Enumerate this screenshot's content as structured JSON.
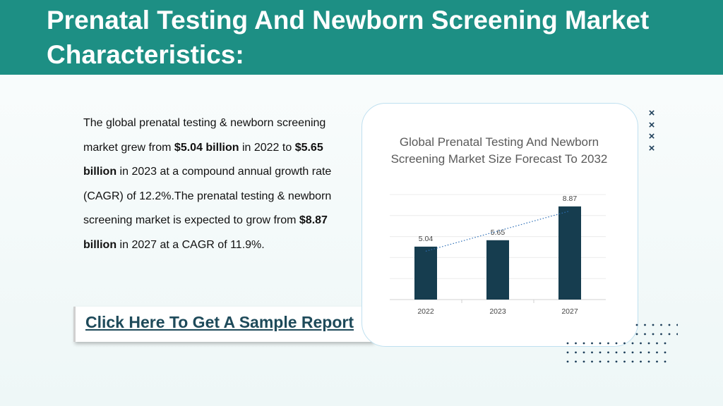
{
  "header": {
    "title": "Prenatal Testing And Newborn Screening Market Characteristics:"
  },
  "body": {
    "segments": [
      {
        "text": "The global prenatal testing & newborn screening market grew from ",
        "bold": false
      },
      {
        "text": "$5.04 billion",
        "bold": true
      },
      {
        "text": " in 2022 to ",
        "bold": false
      },
      {
        "text": "$5.65 billion",
        "bold": true
      },
      {
        "text": " in 2023 at a compound annual growth rate (CAGR) of 12.2%.The prenatal testing & newborn screening market is expected to grow from ",
        "bold": false
      },
      {
        "text": "$8.87 billion",
        "bold": true
      },
      {
        "text": " in 2027 at a CAGR of 11.9%.",
        "bold": false
      }
    ]
  },
  "cta": {
    "label": "Click Here To Get A Sample Report"
  },
  "decor": {
    "x_marks": [
      "×",
      "×",
      "×",
      "×"
    ]
  },
  "colors": {
    "header_bg": "#1d8f84",
    "bar": "#163d4f",
    "trendline": "#2e6fb7",
    "cta_text": "#1e4a5a"
  },
  "chart_data": {
    "type": "bar",
    "title": "Global Prenatal Testing And Newborn Screening Market Size Forecast To 2032",
    "categories": [
      "2022",
      "2023",
      "2027"
    ],
    "values": [
      5.04,
      5.65,
      8.87
    ],
    "value_labels": [
      "5.04",
      "5.65",
      "8.87"
    ],
    "ylim": [
      0,
      10
    ],
    "grid": true,
    "trendline": "linear, dotted",
    "xlabel": "",
    "ylabel": ""
  }
}
